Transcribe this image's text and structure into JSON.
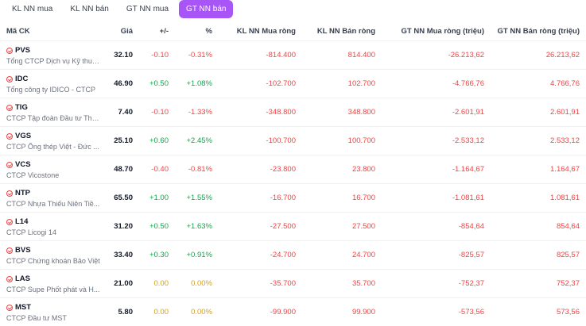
{
  "tabs": [
    {
      "label": "KL NN mua",
      "active": false
    },
    {
      "label": "KL NN bán",
      "active": false
    },
    {
      "label": "GT NN mua",
      "active": false
    },
    {
      "label": "GT NN bán",
      "active": true
    }
  ],
  "colors": {
    "accent": "#a855f7",
    "up": "#16a34a",
    "down": "#ef4444",
    "ref": "#d4a017"
  },
  "headers": {
    "symbol": "Mã CK",
    "price": "Giá",
    "change": "+/-",
    "pct": "%",
    "kl_mua_rong": "KL NN Mua ròng",
    "kl_ban_rong": "KL NN Bán ròng",
    "gt_mua_rong": "GT NN Mua ròng (triệu)",
    "gt_ban_rong": "GT NN Bán ròng (triệu)"
  },
  "rows": [
    {
      "symbol": "PVS",
      "name": "Tổng CTCP Dịch vụ Kỹ thuậ...",
      "price": "32.10",
      "change": "-0.10",
      "pct": "-0.31%",
      "trend": "neg",
      "kl_mua": "-814.400",
      "kl_ban": "814.400",
      "gt_mua": "-26.213,62",
      "gt_ban": "26.213,62"
    },
    {
      "symbol": "IDC",
      "name": "Tổng công ty IDICO - CTCP",
      "price": "46.90",
      "change": "+0.50",
      "pct": "+1.08%",
      "trend": "pos",
      "kl_mua": "-102.700",
      "kl_ban": "102.700",
      "gt_mua": "-4.766,76",
      "gt_ban": "4.766,76"
    },
    {
      "symbol": "TIG",
      "name": "CTCP Tập đoàn Đầu tư Thă...",
      "price": "7.40",
      "change": "-0.10",
      "pct": "-1.33%",
      "trend": "neg",
      "kl_mua": "-348.800",
      "kl_ban": "348.800",
      "gt_mua": "-2.601,91",
      "gt_ban": "2.601,91"
    },
    {
      "symbol": "VGS",
      "name": "CTCP Ống thép Việt - Đức ...",
      "price": "25.10",
      "change": "+0.60",
      "pct": "+2.45%",
      "trend": "pos",
      "kl_mua": "-100.700",
      "kl_ban": "100.700",
      "gt_mua": "-2.533,12",
      "gt_ban": "2.533,12"
    },
    {
      "symbol": "VCS",
      "name": "CTCP Vicostone",
      "price": "48.70",
      "change": "-0.40",
      "pct": "-0.81%",
      "trend": "neg",
      "kl_mua": "-23.800",
      "kl_ban": "23.800",
      "gt_mua": "-1.164,67",
      "gt_ban": "1.164,67"
    },
    {
      "symbol": "NTP",
      "name": "CTCP Nhựa Thiếu Niên Tiề...",
      "price": "65.50",
      "change": "+1.00",
      "pct": "+1.55%",
      "trend": "pos",
      "kl_mua": "-16.700",
      "kl_ban": "16.700",
      "gt_mua": "-1.081,61",
      "gt_ban": "1.081,61"
    },
    {
      "symbol": "L14",
      "name": "CTCP Licogi 14",
      "price": "31.20",
      "change": "+0.50",
      "pct": "+1.63%",
      "trend": "pos",
      "kl_mua": "-27.500",
      "kl_ban": "27.500",
      "gt_mua": "-854,64",
      "gt_ban": "854,64"
    },
    {
      "symbol": "BVS",
      "name": "CTCP Chứng khoán Bảo Việt",
      "price": "33.40",
      "change": "+0.30",
      "pct": "+0.91%",
      "trend": "pos",
      "kl_mua": "-24.700",
      "kl_ban": "24.700",
      "gt_mua": "-825,57",
      "gt_ban": "825,57"
    },
    {
      "symbol": "LAS",
      "name": "CTCP Supe Phốt phát và H...",
      "price": "21.00",
      "change": "0.00",
      "pct": "0.00%",
      "trend": "ref",
      "kl_mua": "-35.700",
      "kl_ban": "35.700",
      "gt_mua": "-752,37",
      "gt_ban": "752,37"
    },
    {
      "symbol": "MST",
      "name": "CTCP Đầu tư MST",
      "price": "5.80",
      "change": "0.00",
      "pct": "0.00%",
      "trend": "ref",
      "kl_mua": "-99.900",
      "kl_ban": "99.900",
      "gt_mua": "-573,56",
      "gt_ban": "573,56"
    }
  ]
}
